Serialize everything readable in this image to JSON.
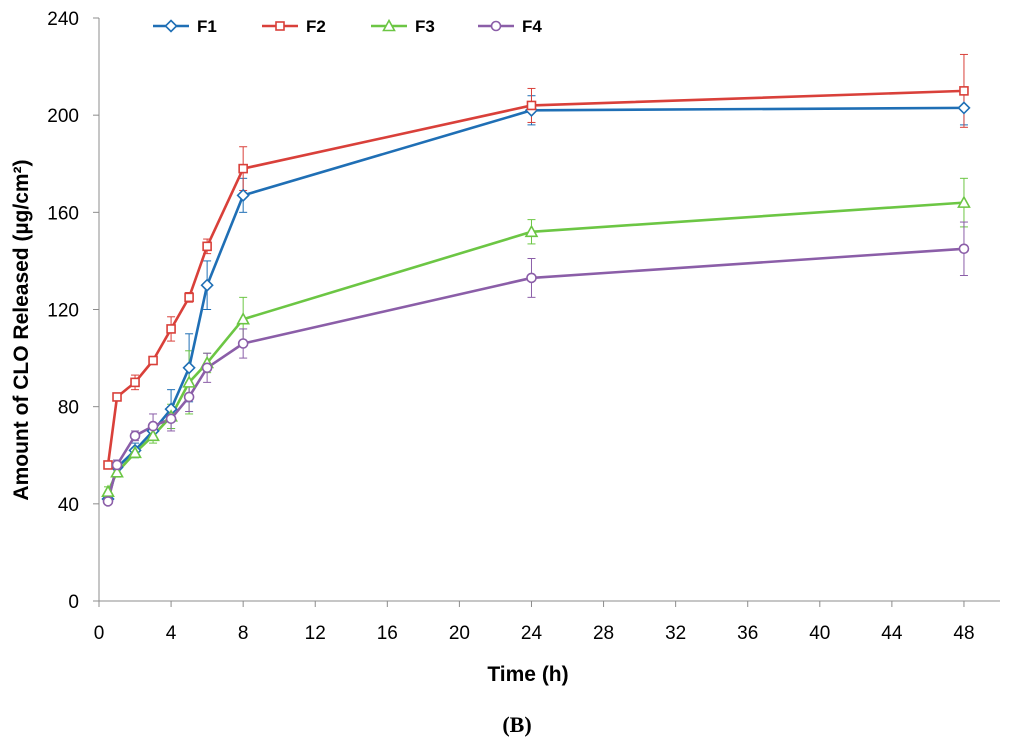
{
  "chart_data": {
    "type": "line",
    "title": "",
    "caption": "(B)",
    "xlabel": "Time (h)",
    "ylabel": "Amount of CLO Released (µg/cm²)",
    "xlim": [
      0,
      50
    ],
    "ylim": [
      0,
      240
    ],
    "x_ticks": [
      0,
      4,
      8,
      12,
      16,
      20,
      24,
      28,
      32,
      36,
      40,
      44,
      48
    ],
    "y_ticks": [
      0,
      40,
      80,
      120,
      160,
      200,
      240
    ],
    "x_axis_breaks": [
      {
        "tick": 24,
        "value": 24
      },
      {
        "tick": 48,
        "value": 48
      }
    ],
    "grid": false,
    "legend_position": "top-left",
    "x": [
      0.5,
      1,
      2,
      3,
      4,
      5,
      6,
      8,
      24,
      48
    ],
    "series": [
      {
        "name": "F1",
        "color": "#1f6fb5",
        "marker": "diamond",
        "values": [
          42,
          55,
          62,
          70,
          79,
          96,
          130,
          167,
          202,
          203
        ],
        "errors": [
          2,
          3,
          3,
          3,
          8,
          14,
          10,
          7,
          6,
          7
        ]
      },
      {
        "name": "F2",
        "color": "#d9403a",
        "marker": "square",
        "values": [
          56,
          84,
          90,
          99,
          112,
          125,
          146,
          178,
          204,
          210
        ],
        "errors": [
          1,
          1,
          3,
          1,
          5,
          2,
          3,
          9,
          7,
          15
        ]
      },
      {
        "name": "F3",
        "color": "#6cc644",
        "marker": "triangle",
        "values": [
          45,
          53,
          61,
          68,
          76,
          90,
          98,
          116,
          152,
          164
        ],
        "errors": [
          2,
          2,
          2,
          3,
          5,
          13,
          4,
          9,
          5,
          10
        ]
      },
      {
        "name": "F4",
        "color": "#8b5ea8",
        "marker": "circle",
        "values": [
          41,
          56,
          68,
          72,
          75,
          84,
          96,
          106,
          133,
          145
        ],
        "errors": [
          1,
          2,
          2,
          5,
          5,
          6,
          6,
          6,
          8,
          11
        ]
      }
    ]
  }
}
